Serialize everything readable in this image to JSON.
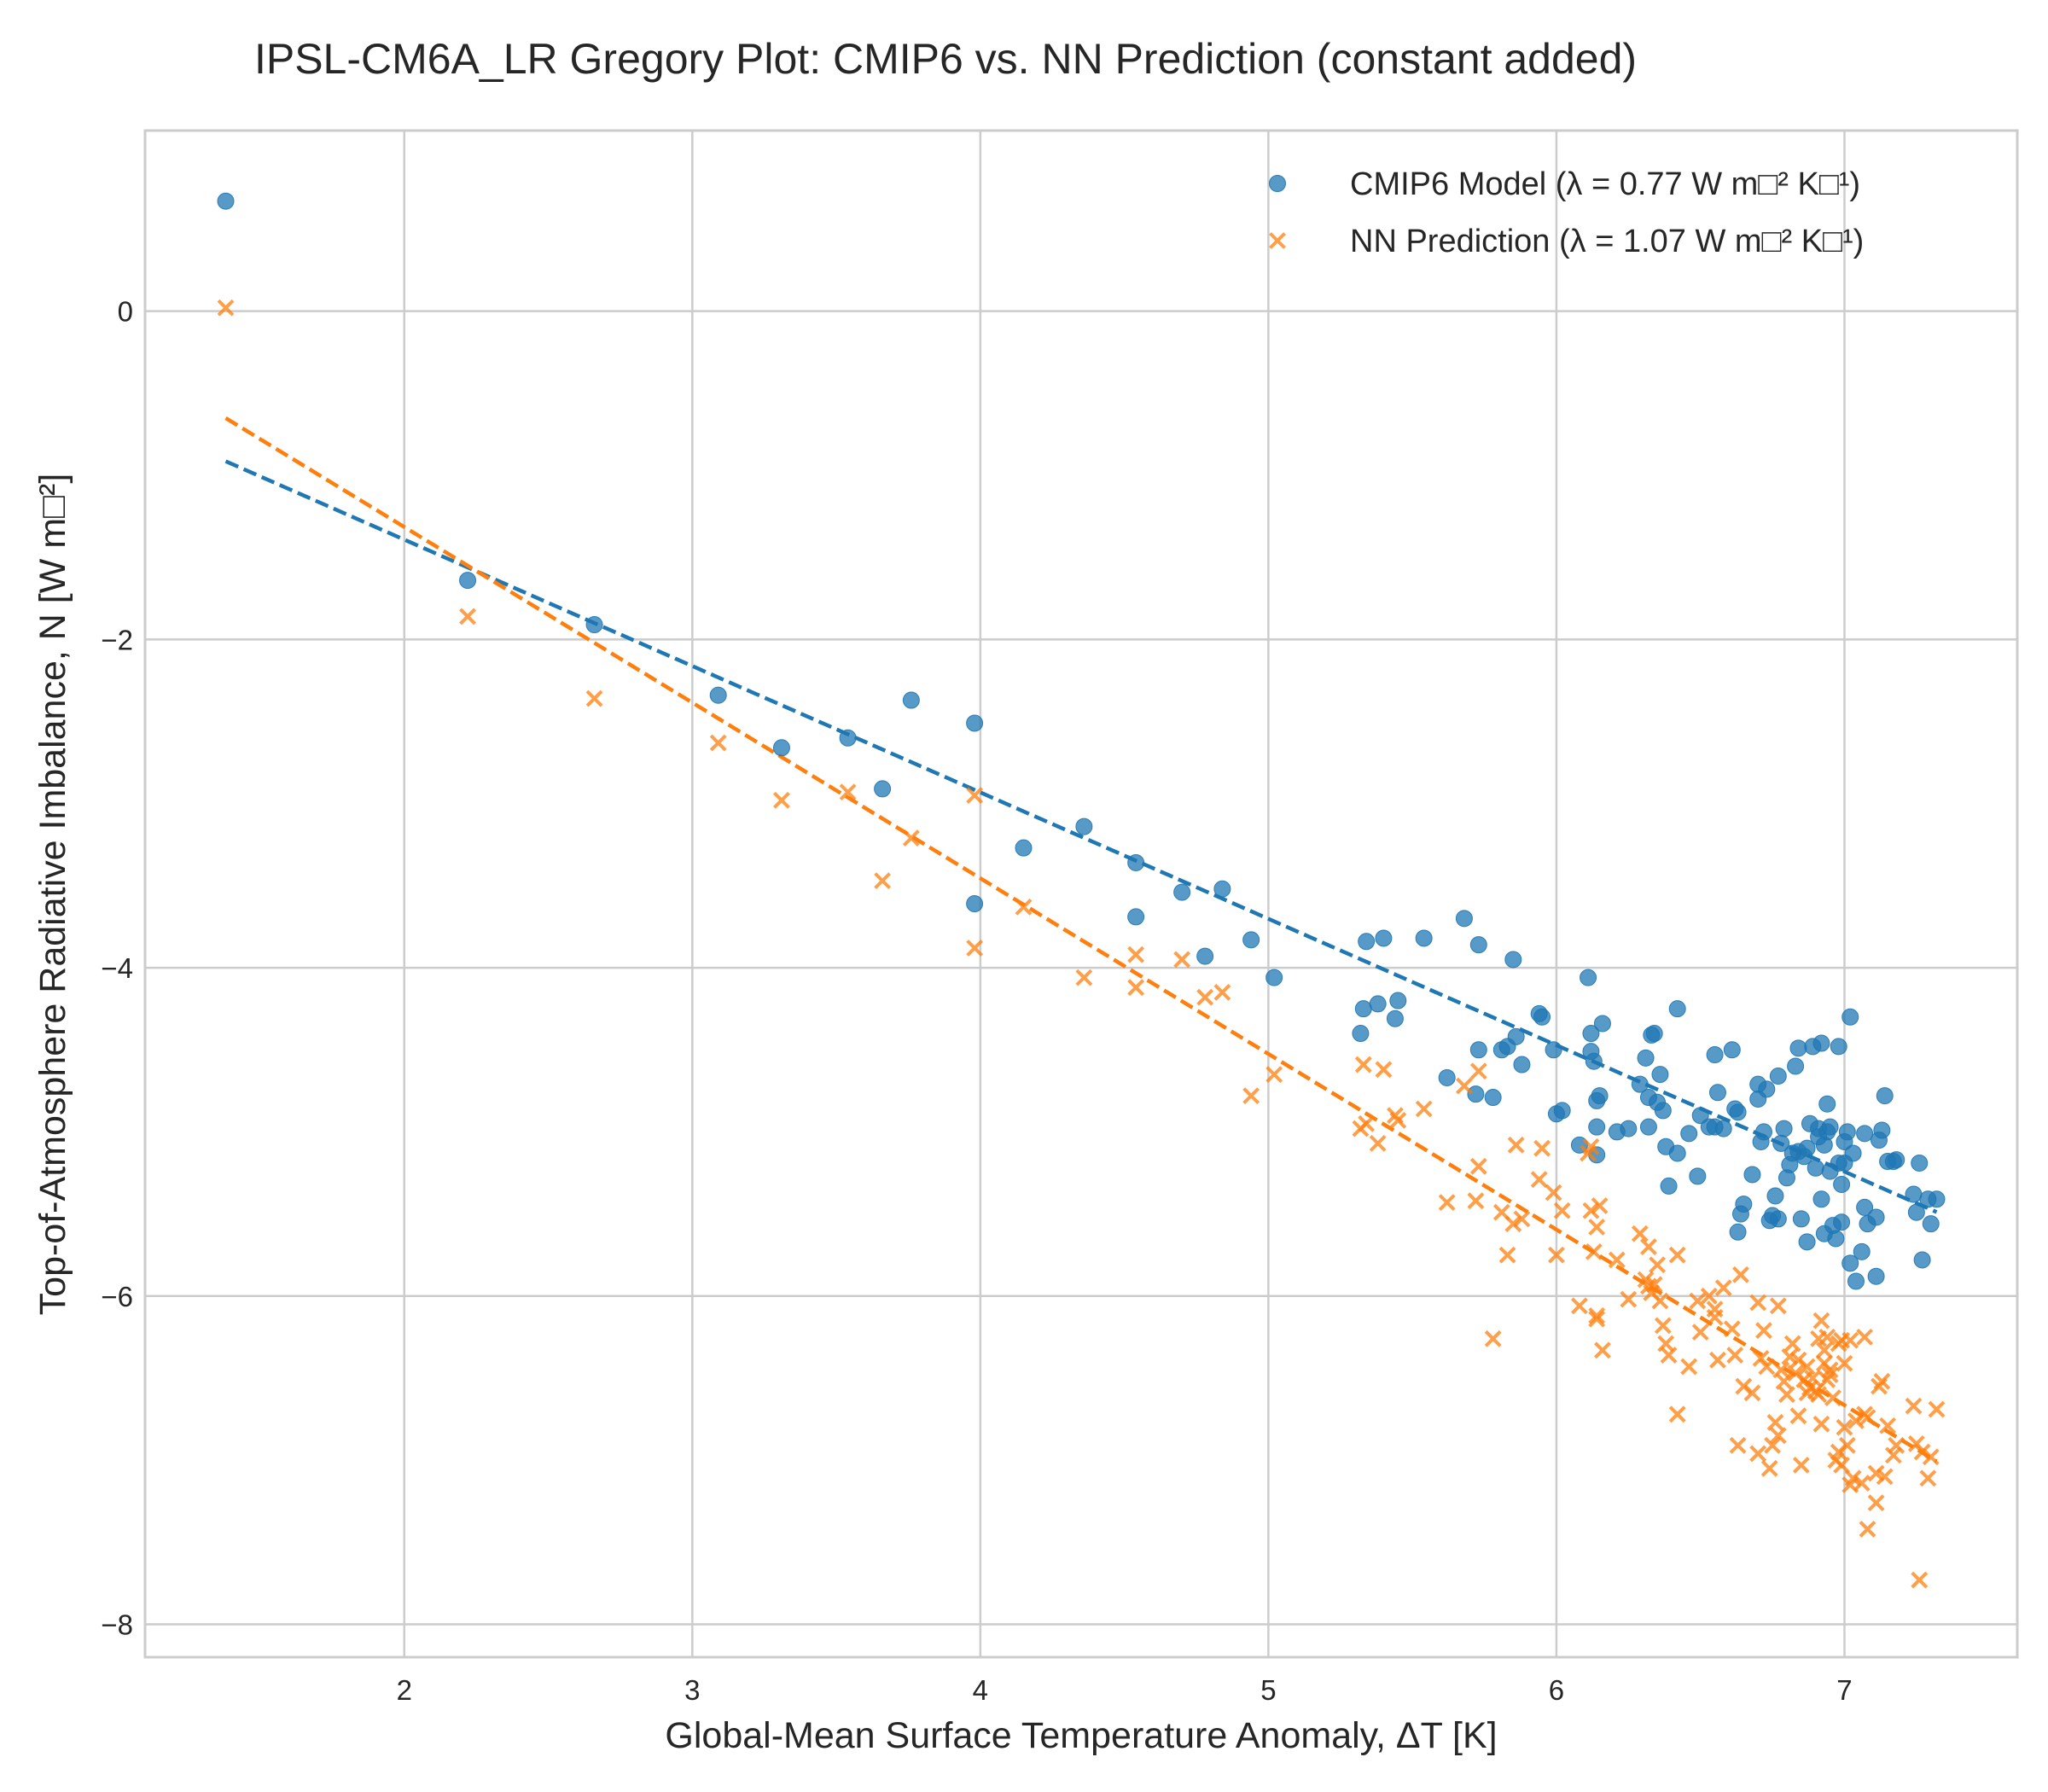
{
  "chart_data": {
    "type": "scatter",
    "title": "IPSL-CM6A_LR Gregory Plot: CMIP6 vs. NN Prediction (constant added)",
    "xlabel": "Global-Mean Surface Temperature Anomaly, ΔT [K]",
    "ylabel": "Top-of-Atmosphere Radiative Imbalance, N [W m□²]",
    "xlim": [
      1.1,
      7.6
    ],
    "ylim": [
      -8.2,
      1.1
    ],
    "xticks": [
      "2",
      "3",
      "4",
      "5",
      "6",
      "7"
    ],
    "yticks": [
      "0",
      "−2",
      "−4",
      "−6",
      "−8"
    ],
    "grid": true,
    "legend_position": "top-right",
    "series": [
      {
        "name": "CMIP6 Model (λ = 0.77 W m□² K□¹)",
        "marker": "circle",
        "color": "#1f77b4",
        "fit": {
          "slope": -0.77,
          "intercept": 0.148,
          "x_range": [
            1.38,
            7.32
          ]
        },
        "points": [
          [
            1.38,
            0.67
          ],
          [
            2.22,
            -1.64
          ],
          [
            2.66,
            -1.91
          ],
          [
            3.09,
            -2.34
          ],
          [
            3.31,
            -2.66
          ],
          [
            3.54,
            -2.6
          ],
          [
            3.66,
            -2.91
          ],
          [
            3.76,
            -2.37
          ],
          [
            3.98,
            -2.51
          ],
          [
            3.98,
            -3.61
          ],
          [
            4.15,
            -3.27
          ],
          [
            4.36,
            -3.14
          ],
          [
            4.54,
            -3.36
          ],
          [
            4.54,
            -3.69
          ],
          [
            4.7,
            -3.54
          ],
          [
            4.78,
            -3.93
          ],
          [
            4.84,
            -3.52
          ],
          [
            4.94,
            -3.83
          ],
          [
            5.02,
            -4.06
          ],
          [
            5.32,
            -4.4
          ],
          [
            5.33,
            -4.25
          ],
          [
            5.34,
            -3.84
          ],
          [
            5.38,
            -4.22
          ],
          [
            5.4,
            -3.82
          ],
          [
            5.44,
            -4.31
          ],
          [
            5.45,
            -4.2
          ],
          [
            5.54,
            -3.82
          ],
          [
            5.62,
            -4.67
          ],
          [
            5.68,
            -3.7
          ],
          [
            5.72,
            -4.77
          ],
          [
            5.73,
            -4.5
          ],
          [
            5.73,
            -3.86
          ],
          [
            5.78,
            -4.79
          ],
          [
            5.81,
            -4.5
          ],
          [
            5.83,
            -4.48
          ],
          [
            5.85,
            -3.95
          ],
          [
            5.86,
            -4.42
          ],
          [
            5.88,
            -4.59
          ],
          [
            5.94,
            -4.28
          ],
          [
            5.95,
            -4.3
          ],
          [
            5.99,
            -4.5
          ],
          [
            6.0,
            -4.89
          ],
          [
            6.02,
            -4.87
          ],
          [
            6.08,
            -5.08
          ],
          [
            6.11,
            -4.06
          ],
          [
            6.12,
            -4.4
          ],
          [
            6.12,
            -4.51
          ],
          [
            6.13,
            -4.57
          ],
          [
            6.14,
            -4.81
          ],
          [
            6.14,
            -4.97
          ],
          [
            6.14,
            -5.14
          ],
          [
            6.15,
            -4.78
          ],
          [
            6.16,
            -4.34
          ],
          [
            6.21,
            -5.0
          ],
          [
            6.25,
            -4.98
          ],
          [
            6.29,
            -4.71
          ],
          [
            6.31,
            -4.55
          ],
          [
            6.32,
            -4.79
          ],
          [
            6.32,
            -4.97
          ],
          [
            6.33,
            -4.41
          ],
          [
            6.34,
            -4.4
          ],
          [
            6.35,
            -4.82
          ],
          [
            6.36,
            -4.65
          ],
          [
            6.37,
            -4.87
          ],
          [
            6.38,
            -5.09
          ],
          [
            6.39,
            -5.33
          ],
          [
            6.42,
            -4.25
          ],
          [
            6.42,
            -5.13
          ],
          [
            6.46,
            -5.01
          ],
          [
            6.49,
            -5.27
          ],
          [
            6.5,
            -4.9
          ],
          [
            6.53,
            -4.97
          ],
          [
            6.55,
            -4.97
          ],
          [
            6.55,
            -4.53
          ],
          [
            6.56,
            -4.76
          ],
          [
            6.58,
            -4.98
          ],
          [
            6.61,
            -4.5
          ],
          [
            6.62,
            -4.86
          ],
          [
            6.63,
            -4.88
          ],
          [
            6.63,
            -5.61
          ],
          [
            6.64,
            -5.5
          ],
          [
            6.65,
            -5.44
          ],
          [
            6.68,
            -5.26
          ],
          [
            6.7,
            -4.8
          ],
          [
            6.7,
            -4.71
          ],
          [
            6.71,
            -5.06
          ],
          [
            6.72,
            -5.0
          ],
          [
            6.73,
            -4.74
          ],
          [
            6.74,
            -5.54
          ],
          [
            6.75,
            -5.51
          ],
          [
            6.76,
            -5.39
          ],
          [
            6.77,
            -4.66
          ],
          [
            6.77,
            -5.53
          ],
          [
            6.78,
            -5.07
          ],
          [
            6.79,
            -4.98
          ],
          [
            6.8,
            -5.28
          ],
          [
            6.81,
            -5.2
          ],
          [
            6.82,
            -5.13
          ],
          [
            6.83,
            -4.6
          ],
          [
            6.84,
            -4.49
          ],
          [
            6.84,
            -5.12
          ],
          [
            6.85,
            -5.53
          ],
          [
            6.86,
            -5.15
          ],
          [
            6.87,
            -5.1
          ],
          [
            6.87,
            -5.67
          ],
          [
            6.88,
            -4.95
          ],
          [
            6.89,
            -4.48
          ],
          [
            6.9,
            -5.22
          ],
          [
            6.91,
            -5.03
          ],
          [
            6.91,
            -4.98
          ],
          [
            6.92,
            -4.46
          ],
          [
            6.92,
            -5.41
          ],
          [
            6.93,
            -5.08
          ],
          [
            6.93,
            -5.62
          ],
          [
            6.94,
            -5.0
          ],
          [
            6.94,
            -4.83
          ],
          [
            6.95,
            -4.97
          ],
          [
            6.95,
            -5.24
          ],
          [
            6.96,
            -5.57
          ],
          [
            6.97,
            -5.65
          ],
          [
            6.98,
            -5.19
          ],
          [
            6.98,
            -4.48
          ],
          [
            6.99,
            -5.55
          ],
          [
            6.99,
            -5.32
          ],
          [
            7.0,
            -5.06
          ],
          [
            7.0,
            -5.19
          ],
          [
            7.01,
            -5.0
          ],
          [
            7.02,
            -5.8
          ],
          [
            7.02,
            -4.3
          ],
          [
            7.03,
            -5.13
          ],
          [
            7.04,
            -5.91
          ],
          [
            7.06,
            -5.73
          ],
          [
            7.07,
            -5.01
          ],
          [
            7.07,
            -5.46
          ],
          [
            7.08,
            -5.56
          ],
          [
            7.11,
            -5.52
          ],
          [
            7.11,
            -5.88
          ],
          [
            7.12,
            -5.05
          ],
          [
            7.13,
            -4.99
          ],
          [
            7.14,
            -4.78
          ],
          [
            7.15,
            -5.18
          ],
          [
            7.17,
            -5.18
          ],
          [
            7.18,
            -5.17
          ],
          [
            7.24,
            -5.38
          ],
          [
            7.25,
            -5.49
          ],
          [
            7.26,
            -5.19
          ],
          [
            7.27,
            -5.78
          ],
          [
            7.29,
            -5.41
          ],
          [
            7.3,
            -5.56
          ],
          [
            7.32,
            -5.41
          ]
        ]
      },
      {
        "name": "NN Prediction (λ = 1.07 W m□² K□¹)",
        "marker": "x",
        "color": "#ff7f0e",
        "fit": {
          "slope": -1.07,
          "intercept": 0.825,
          "x_range": [
            1.38,
            7.32
          ]
        },
        "points": [
          [
            1.38,
            0.02
          ],
          [
            2.22,
            -1.86
          ],
          [
            2.66,
            -2.36
          ],
          [
            3.09,
            -2.63
          ],
          [
            3.31,
            -2.98
          ],
          [
            3.54,
            -2.93
          ],
          [
            3.66,
            -3.47
          ],
          [
            3.76,
            -3.21
          ],
          [
            3.98,
            -2.95
          ],
          [
            3.98,
            -3.88
          ],
          [
            4.15,
            -3.63
          ],
          [
            4.36,
            -4.06
          ],
          [
            4.54,
            -3.92
          ],
          [
            4.54,
            -4.12
          ],
          [
            4.7,
            -3.95
          ],
          [
            4.78,
            -4.18
          ],
          [
            4.84,
            -4.15
          ],
          [
            4.94,
            -4.78
          ],
          [
            5.02,
            -4.65
          ],
          [
            5.32,
            -4.98
          ],
          [
            5.33,
            -4.59
          ],
          [
            5.34,
            -4.95
          ],
          [
            5.38,
            -5.07
          ],
          [
            5.4,
            -4.62
          ],
          [
            5.44,
            -4.9
          ],
          [
            5.45,
            -4.93
          ],
          [
            5.54,
            -4.86
          ],
          [
            5.62,
            -5.43
          ],
          [
            5.68,
            -4.72
          ],
          [
            5.72,
            -5.42
          ],
          [
            5.73,
            -5.21
          ],
          [
            5.73,
            -4.63
          ],
          [
            5.78,
            -6.26
          ],
          [
            5.81,
            -5.49
          ],
          [
            5.83,
            -5.75
          ],
          [
            5.85,
            -5.56
          ],
          [
            5.86,
            -5.08
          ],
          [
            5.88,
            -5.53
          ],
          [
            5.94,
            -5.29
          ],
          [
            5.95,
            -5.1
          ],
          [
            5.99,
            -5.37
          ],
          [
            6.0,
            -5.75
          ],
          [
            6.02,
            -5.48
          ],
          [
            6.08,
            -6.06
          ],
          [
            6.11,
            -5.13
          ],
          [
            6.12,
            -5.09
          ],
          [
            6.12,
            -5.48
          ],
          [
            6.13,
            -5.73
          ],
          [
            6.14,
            -5.58
          ],
          [
            6.14,
            -6.12
          ],
          [
            6.14,
            -6.14
          ],
          [
            6.15,
            -5.45
          ],
          [
            6.16,
            -6.33
          ],
          [
            6.21,
            -5.78
          ],
          [
            6.25,
            -6.02
          ],
          [
            6.29,
            -5.62
          ],
          [
            6.31,
            -5.9
          ],
          [
            6.32,
            -5.7
          ],
          [
            6.32,
            -5.94
          ],
          [
            6.33,
            -5.98
          ],
          [
            6.34,
            -5.93
          ],
          [
            6.35,
            -5.81
          ],
          [
            6.36,
            -6.03
          ],
          [
            6.37,
            -6.18
          ],
          [
            6.38,
            -6.29
          ],
          [
            6.39,
            -6.36
          ],
          [
            6.42,
            -6.72
          ],
          [
            6.42,
            -5.75
          ],
          [
            6.46,
            -6.43
          ],
          [
            6.49,
            -6.03
          ],
          [
            6.5,
            -6.22
          ],
          [
            6.53,
            -6.0
          ],
          [
            6.55,
            -6.13
          ],
          [
            6.55,
            -6.08
          ],
          [
            6.56,
            -6.39
          ],
          [
            6.58,
            -5.95
          ],
          [
            6.61,
            -6.2
          ],
          [
            6.62,
            -6.36
          ],
          [
            6.63,
            -6.91
          ],
          [
            6.64,
            -5.87
          ],
          [
            6.65,
            -6.55
          ],
          [
            6.68,
            -6.59
          ],
          [
            6.7,
            -6.04
          ],
          [
            6.7,
            -6.96
          ],
          [
            6.71,
            -6.38
          ],
          [
            6.72,
            -6.21
          ],
          [
            6.73,
            -6.43
          ],
          [
            6.74,
            -7.05
          ],
          [
            6.75,
            -6.91
          ],
          [
            6.76,
            -6.77
          ],
          [
            6.77,
            -6.06
          ],
          [
            6.77,
            -6.85
          ],
          [
            6.78,
            -6.45
          ],
          [
            6.79,
            -6.52
          ],
          [
            6.8,
            -6.6
          ],
          [
            6.81,
            -6.37
          ],
          [
            6.82,
            -6.29
          ],
          [
            6.83,
            -6.47
          ],
          [
            6.84,
            -6.39
          ],
          [
            6.84,
            -6.73
          ],
          [
            6.85,
            -7.03
          ],
          [
            6.86,
            -6.51
          ],
          [
            6.87,
            -6.59
          ],
          [
            6.87,
            -6.43
          ],
          [
            6.88,
            -6.56
          ],
          [
            6.89,
            -6.5
          ],
          [
            6.9,
            -6.58
          ],
          [
            6.91,
            -6.26
          ],
          [
            6.91,
            -6.6
          ],
          [
            6.92,
            -6.15
          ],
          [
            6.92,
            -6.78
          ],
          [
            6.93,
            -6.41
          ],
          [
            6.93,
            -6.33
          ],
          [
            6.94,
            -6.51
          ],
          [
            6.94,
            -6.25
          ],
          [
            6.95,
            -6.45
          ],
          [
            6.95,
            -6.48
          ],
          [
            6.96,
            -6.62
          ],
          [
            6.97,
            -7.0
          ],
          [
            6.98,
            -6.95
          ],
          [
            6.98,
            -6.29
          ],
          [
            6.99,
            -6.27
          ],
          [
            6.99,
            -7.03
          ],
          [
            7.0,
            -6.41
          ],
          [
            7.0,
            -6.8
          ],
          [
            7.01,
            -6.91
          ],
          [
            7.02,
            -7.15
          ],
          [
            7.02,
            -6.27
          ],
          [
            7.03,
            -7.11
          ],
          [
            7.04,
            -6.76
          ],
          [
            7.06,
            -7.14
          ],
          [
            7.07,
            -6.72
          ],
          [
            7.07,
            -6.25
          ],
          [
            7.08,
            -7.42
          ],
          [
            7.08,
            -6.74
          ],
          [
            7.11,
            -7.08
          ],
          [
            7.11,
            -7.26
          ],
          [
            7.12,
            -6.55
          ],
          [
            7.13,
            -6.52
          ],
          [
            7.14,
            -7.1
          ],
          [
            7.15,
            -6.79
          ],
          [
            7.17,
            -6.97
          ],
          [
            7.18,
            -6.91
          ],
          [
            7.24,
            -6.67
          ],
          [
            7.25,
            -6.9
          ],
          [
            7.26,
            -7.73
          ],
          [
            7.27,
            -6.95
          ],
          [
            7.29,
            -7.11
          ],
          [
            7.3,
            -6.98
          ],
          [
            7.32,
            -6.69
          ]
        ]
      }
    ]
  }
}
